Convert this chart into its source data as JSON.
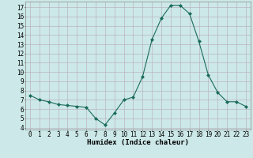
{
  "x": [
    0,
    1,
    2,
    3,
    4,
    5,
    6,
    7,
    8,
    9,
    10,
    11,
    12,
    13,
    14,
    15,
    16,
    17,
    18,
    19,
    20,
    21,
    22,
    23
  ],
  "y": [
    7.5,
    7.0,
    6.8,
    6.5,
    6.4,
    6.3,
    6.2,
    5.0,
    4.3,
    5.6,
    7.0,
    7.3,
    9.5,
    13.5,
    15.8,
    17.2,
    17.2,
    16.3,
    13.3,
    9.7,
    7.8,
    6.8,
    6.8,
    6.3
  ],
  "line_color": "#1a6b5a",
  "marker": "D",
  "marker_size": 2.0,
  "bg_color": "#cce8e8",
  "grid_major_color": "#b8a8b8",
  "grid_minor_color": "#b8a8b8",
  "xlabel": "Humidex (Indice chaleur)",
  "xlim": [
    -0.5,
    23.5
  ],
  "ylim": [
    3.8,
    17.6
  ],
  "yticks": [
    4,
    5,
    6,
    7,
    8,
    9,
    10,
    11,
    12,
    13,
    14,
    15,
    16,
    17
  ],
  "xticks": [
    0,
    1,
    2,
    3,
    4,
    5,
    6,
    7,
    8,
    9,
    10,
    11,
    12,
    13,
    14,
    15,
    16,
    17,
    18,
    19,
    20,
    21,
    22,
    23
  ],
  "xlabel_fontsize": 6.5,
  "tick_fontsize": 5.5
}
